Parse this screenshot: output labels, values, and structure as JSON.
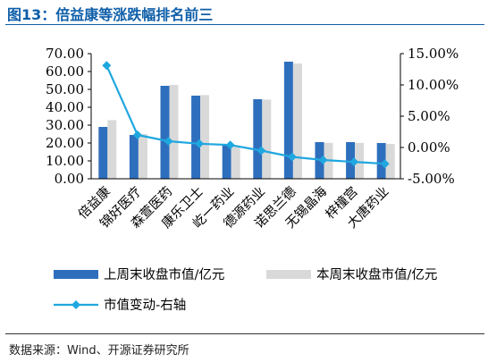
{
  "header": {
    "title": "图13：倍益康等涨跌幅排名前三"
  },
  "footer": {
    "source": "数据来源：Wind、开源证券研究所"
  },
  "chart_data": {
    "type": "bar",
    "categories": [
      "倍益康",
      "锦好医疗",
      "森萱医药",
      "康乐卫士",
      "屹一药业",
      "德源药业",
      "诺思兰德",
      "无锡晶海",
      "梓橦宫",
      "大唐药业"
    ],
    "series": [
      {
        "name": "上周末收盘市值/亿元",
        "kind": "bar",
        "axis": "left",
        "color": "#2e6fbd",
        "values": [
          29.0,
          24.5,
          52.0,
          46.5,
          18.5,
          44.5,
          65.5,
          20.5,
          20.5,
          20.0
        ]
      },
      {
        "name": "本周末收盘市值/亿元",
        "kind": "bar",
        "axis": "left",
        "color": "#d9d9d9",
        "values": [
          32.8,
          25.0,
          52.5,
          46.8,
          18.6,
          44.3,
          64.5,
          20.1,
          20.1,
          19.5
        ]
      },
      {
        "name": "市值变动-右轴",
        "kind": "line",
        "axis": "right",
        "color": "#1fa7e0",
        "values": [
          13.1,
          2.0,
          1.0,
          0.6,
          0.4,
          -0.5,
          -1.5,
          -2.0,
          -2.3,
          -2.6
        ]
      }
    ],
    "y_left": {
      "range": [
        0,
        70
      ],
      "ticks": [
        0,
        10,
        20,
        30,
        40,
        50,
        60,
        70
      ],
      "tick_labels": [
        "0.00",
        "10.00",
        "20.00",
        "30.00",
        "40.00",
        "50.00",
        "60.00",
        "70.00"
      ]
    },
    "y_right": {
      "range": [
        -5,
        15
      ],
      "ticks": [
        -5,
        0,
        5,
        10,
        15
      ],
      "tick_labels": [
        "-5.00%",
        "0.00%",
        "5.00%",
        "10.00%",
        "15.00%"
      ]
    },
    "grid": false,
    "legend_position": "bottom"
  }
}
